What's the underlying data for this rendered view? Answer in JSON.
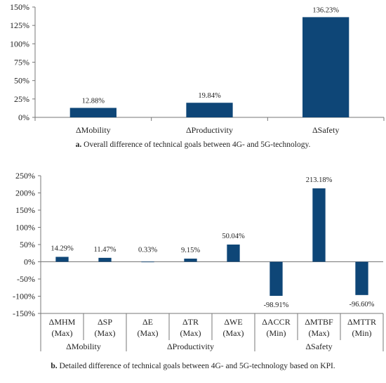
{
  "chart_data": [
    {
      "type": "bar",
      "categories": [
        "ΔMobility",
        "ΔProductivity",
        "ΔSafety"
      ],
      "values": [
        12.88,
        19.84,
        136.23
      ],
      "data_labels": [
        "12.88%",
        "19.84%",
        "136.23%"
      ],
      "ylim": [
        0,
        150
      ],
      "yticks": [
        "0%",
        "25%",
        "50%",
        "75%",
        "100%",
        "125%",
        "150%"
      ],
      "ytick_values": [
        0,
        25,
        50,
        75,
        100,
        125,
        150
      ],
      "bar_color": "#0e4677",
      "grid": false,
      "caption_prefix": "a.",
      "caption_text": "Overall difference of technical goals between 4G- and 5G-technology."
    },
    {
      "type": "bar",
      "categories": [
        {
          "name": "ΔMHM",
          "sub": "(Max)"
        },
        {
          "name": "ΔSP",
          "sub": "(Max)"
        },
        {
          "name": "ΔE",
          "sub": "(Max)"
        },
        {
          "name": "ΔTR",
          "sub": "(Max)"
        },
        {
          "name": "ΔWE",
          "sub": "(Max)"
        },
        {
          "name": "ΔACCR",
          "sub": "(Min)"
        },
        {
          "name": "ΔMTBF",
          "sub": "(Max)"
        },
        {
          "name": "ΔMTTR",
          "sub": "(Min)"
        }
      ],
      "groups": [
        {
          "name": "ΔMobility",
          "count": 2
        },
        {
          "name": "ΔProductivity",
          "count": 3
        },
        {
          "name": "ΔSafety",
          "count": 3
        }
      ],
      "values": [
        14.29,
        11.47,
        0.33,
        9.15,
        50.04,
        -98.91,
        213.18,
        -96.6
      ],
      "data_labels": [
        "14.29%",
        "11.47%",
        "0.33%",
        "9.15%",
        "50.04%",
        "-98.91%",
        "213.18%",
        "-96.60%"
      ],
      "ylim": [
        -150,
        250
      ],
      "yticks": [
        "-150%",
        "-100%",
        "-50%",
        "0%",
        "50%",
        "100%",
        "150%",
        "200%",
        "250%"
      ],
      "ytick_values": [
        -150,
        -100,
        -50,
        0,
        50,
        100,
        150,
        200,
        250
      ],
      "bar_color": "#0e4677",
      "grid": false,
      "caption_prefix": "b.",
      "caption_text": "Detailed difference of technical goals between 4G- and 5G-technology based on KPI."
    }
  ]
}
